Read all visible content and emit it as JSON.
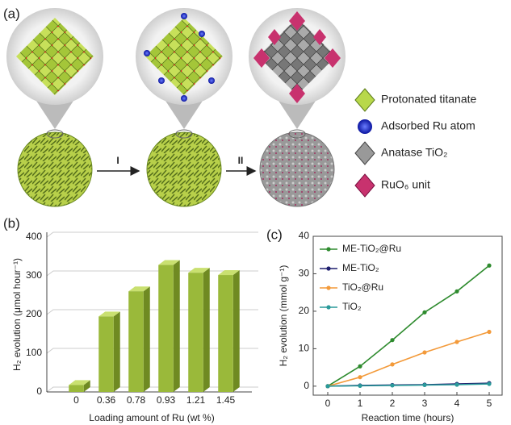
{
  "panel_a": {
    "label": "(a)",
    "steps": [
      "I",
      "II"
    ],
    "legend": [
      "Protonated titanate",
      "Adsorbed Ru atom",
      "Anatase TiO₂",
      "RuO₆ unit"
    ]
  },
  "chart_data": [
    {
      "type": "bar",
      "label": "(b)",
      "ylabel": "H₂ evolution (μmol hour⁻¹)",
      "xlabel": "Loading amount of Ru (wt %)",
      "categories": [
        "0",
        "0.36",
        "0.78",
        "0.93",
        "1.21",
        "1.45"
      ],
      "values": [
        18,
        195,
        260,
        328,
        308,
        302
      ],
      "color": "#9ab93a",
      "ylim": [
        0,
        400
      ],
      "yticks": [
        0,
        100,
        200,
        300,
        400
      ],
      "grid": true
    },
    {
      "type": "line",
      "label": "(c)",
      "ylabel": "H₂ evolution (mmol g⁻¹)",
      "xlabel": "Reaction time (hours)",
      "x": [
        0,
        1,
        2,
        3,
        4,
        5
      ],
      "xlim": [
        -0.45,
        5.4
      ],
      "xticks": [
        0,
        1,
        2,
        3,
        4,
        5
      ],
      "ylim": [
        -2.4,
        40
      ],
      "yticks": [
        0,
        10,
        20,
        30,
        40
      ],
      "legend": "upper left",
      "series": [
        {
          "name": "ME-TiO₂@Ru",
          "color": "#2e8b2e",
          "values": [
            0,
            5.3,
            12.3,
            19.7,
            25.3,
            32.2
          ]
        },
        {
          "name": "ME-TiO₂",
          "color": "#1f1f6e",
          "values": [
            0,
            0.2,
            0.3,
            0.4,
            0.6,
            0.8
          ]
        },
        {
          "name": "TiO₂@Ru",
          "color": "#f39a3a",
          "values": [
            0,
            2.4,
            5.8,
            9,
            11.8,
            14.5
          ]
        },
        {
          "name": "TiO₂",
          "color": "#2a9a9a",
          "values": [
            0,
            0.1,
            0.2,
            0.3,
            0.4,
            0.6
          ]
        }
      ]
    }
  ]
}
